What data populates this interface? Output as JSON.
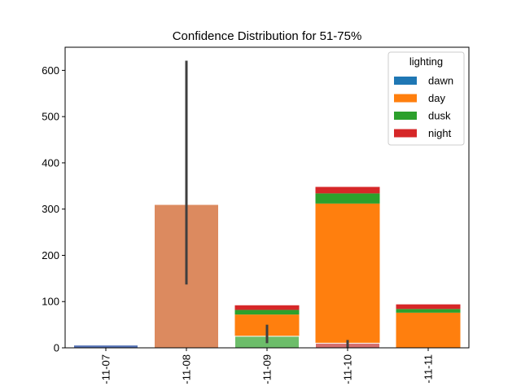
{
  "chart_data": {
    "type": "bar",
    "title": "Confidence Distribution for 51-75%",
    "xlabel": "",
    "ylabel": "",
    "ylim": [
      0,
      650
    ],
    "yticks": [
      0,
      100,
      200,
      300,
      400,
      500,
      600
    ],
    "categories": [
      "-11-07",
      "-11-08",
      "-11-09",
      "-11-10",
      "-11-11"
    ],
    "legend": {
      "title": "lighting",
      "placement": "top-right",
      "entries": [
        {
          "name": "dawn",
          "color": "#1f77b4"
        },
        {
          "name": "day",
          "color": "#ff7f0e"
        },
        {
          "name": "dusk",
          "color": "#2ca02c"
        },
        {
          "name": "night",
          "color": "#d62728"
        }
      ]
    },
    "stacked_series": [
      {
        "name": "dawn",
        "color": "#1f77b4",
        "values": [
          0,
          0,
          0,
          0,
          0
        ]
      },
      {
        "name": "day",
        "color": "#ff7f0e",
        "values": [
          0,
          0,
          72,
          312,
          76
        ]
      },
      {
        "name": "dusk",
        "color": "#2ca02c",
        "values": [
          0,
          0,
          10,
          22,
          8
        ]
      },
      {
        "name": "night",
        "color": "#d62728",
        "values": [
          0,
          0,
          10,
          14,
          10
        ]
      }
    ],
    "mean_bars": [
      {
        "category": "-11-07",
        "value": 6,
        "color": "#5875b7",
        "ci": null
      },
      {
        "category": "-11-08",
        "value": 310,
        "color": "#dc8a5f",
        "ci": [
          137,
          621
        ]
      },
      {
        "category": "-11-09",
        "value": 25,
        "color": "#6cbd6a",
        "ci": [
          10,
          50
        ]
      },
      {
        "category": "-11-10",
        "value": 10,
        "color": "#d56f6f",
        "ci": [
          0,
          17
        ]
      }
    ]
  }
}
